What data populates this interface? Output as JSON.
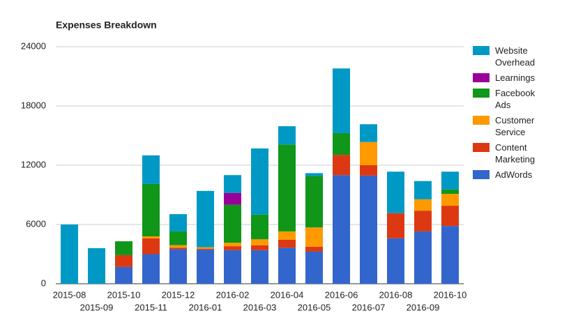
{
  "chart_data": {
    "type": "stacked_bar",
    "title": "Expenses Breakdown",
    "categories": [
      "2015-08",
      "2015-09",
      "2015-10",
      "2015-11",
      "2015-12",
      "2016-01",
      "2016-02",
      "2016-03",
      "2016-04",
      "2016-05",
      "2016-06",
      "2016-07",
      "2016-08",
      "2016-09",
      "2016-10"
    ],
    "series": [
      {
        "name": "Website Overhead",
        "color": "#0099c6",
        "values": [
          6000,
          3600,
          0,
          2900,
          1750,
          5700,
          1800,
          6700,
          1850,
          300,
          6550,
          1800,
          4200,
          1850,
          1800
        ]
      },
      {
        "name": "Learnings",
        "color": "#990099",
        "values": [
          0,
          0,
          0,
          0,
          0,
          0,
          1200,
          0,
          0,
          0,
          0,
          0,
          0,
          0,
          0
        ]
      },
      {
        "name": "Facebook Ads",
        "color": "#109618",
        "values": [
          0,
          0,
          1400,
          5300,
          1400,
          0,
          3850,
          2500,
          8800,
          5200,
          2200,
          0,
          0,
          0,
          450
        ]
      },
      {
        "name": "Customer Service",
        "color": "#ff9900",
        "values": [
          0,
          0,
          0,
          200,
          250,
          150,
          350,
          600,
          850,
          1950,
          0,
          2350,
          0,
          1150,
          1200
        ]
      },
      {
        "name": "Content Marketing",
        "color": "#dc3912",
        "values": [
          0,
          0,
          1200,
          1600,
          150,
          100,
          400,
          500,
          800,
          500,
          2050,
          1050,
          2550,
          2100,
          2050
        ]
      },
      {
        "name": "AdWords",
        "color": "#3366cc",
        "values": [
          0,
          0,
          1700,
          3000,
          3500,
          3450,
          3400,
          3400,
          3650,
          3250,
          11000,
          10950,
          4600,
          5300,
          5850
        ]
      }
    ],
    "ylim": [
      0,
      24000
    ],
    "yticks": [
      0,
      6000,
      12000,
      18000,
      24000
    ],
    "grid": true,
    "legend": "right"
  }
}
